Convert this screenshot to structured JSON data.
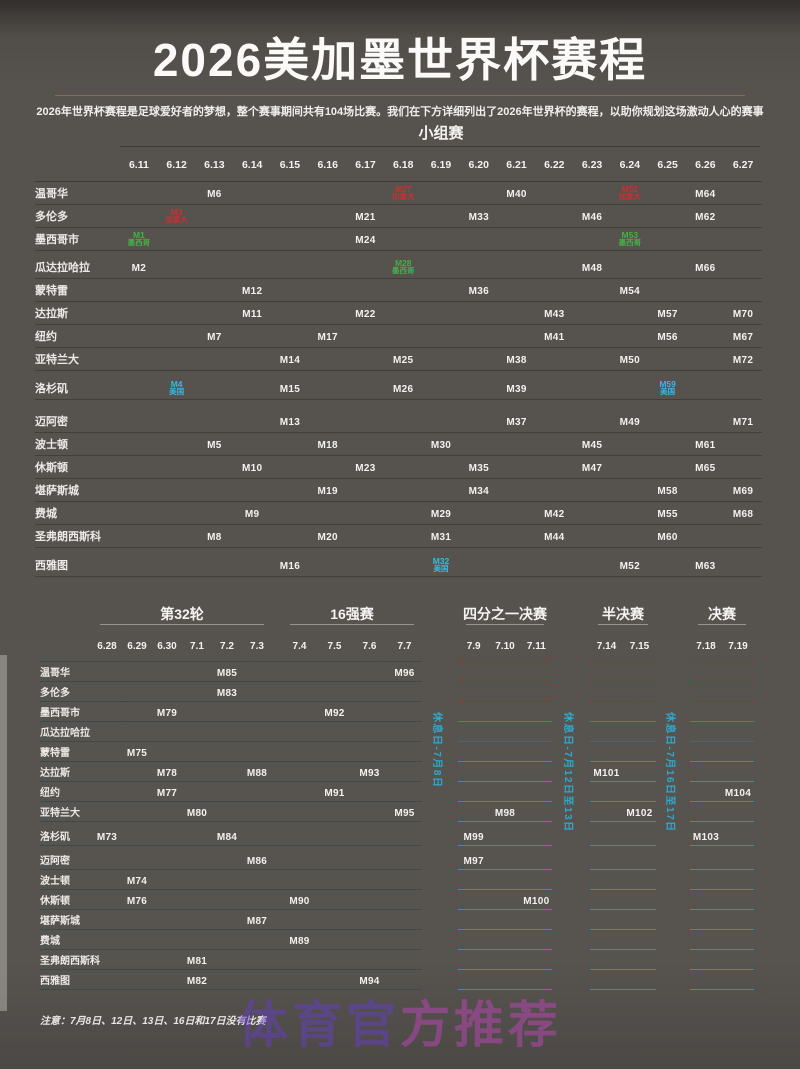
{
  "title": "2026美加墨世界杯赛程",
  "subtitle": "2026年世界杯赛程是足球爱好者的梦想，整个赛事期间共有104场比赛。我们在下方详细列出了2026年世界杯的赛程，以助你规划这场激动人心的赛事",
  "note": "注意：7月8日、12日、13日、16日和17日没有比赛",
  "watermark": {
    "left": "体育官",
    "right": "方推荐"
  },
  "countries": {
    "canada": "加拿大",
    "mexico": "墨西哥",
    "usa": "美国"
  },
  "colors": {
    "canada": "#c93030",
    "mexico": "#45b045",
    "usa": "#38b8ea",
    "rest_day": "#2fa9cf",
    "background": "#56524e",
    "title_rule": "#87695a"
  },
  "group_stage": {
    "heading": "小组赛",
    "dates": [
      "6.11",
      "6.12",
      "6.13",
      "6.14",
      "6.15",
      "6.16",
      "6.17",
      "6.18",
      "6.19",
      "6.20",
      "6.21",
      "6.22",
      "6.23",
      "6.24",
      "6.25",
      "6.26",
      "6.27"
    ],
    "rows": [
      {
        "city": "温哥华",
        "matches": [
          {
            "date": "6.13",
            "m": "M6"
          },
          {
            "date": "6.18",
            "m": "M27",
            "tag": "canada"
          },
          {
            "date": "6.21",
            "m": "M40"
          },
          {
            "date": "6.24",
            "m": "M51",
            "tag": "canada"
          },
          {
            "date": "6.26",
            "m": "M64"
          }
        ]
      },
      {
        "city": "多伦多",
        "matches": [
          {
            "date": "6.12",
            "m": "M3",
            "tag": "canada"
          },
          {
            "date": "6.17",
            "m": "M21"
          },
          {
            "date": "6.20",
            "m": "M33"
          },
          {
            "date": "6.23",
            "m": "M46"
          },
          {
            "date": "6.26",
            "m": "M62"
          }
        ]
      },
      {
        "city": "墨西哥市",
        "matches": [
          {
            "date": "6.11",
            "m": "M1",
            "tag": "mexico"
          },
          {
            "date": "6.17",
            "m": "M24"
          },
          {
            "date": "6.24",
            "m": "M53",
            "tag": "mexico"
          }
        ]
      },
      {
        "city": "瓜达拉哈拉",
        "matches": [
          {
            "date": "6.11",
            "m": "M2"
          },
          {
            "date": "6.18",
            "m": "M28",
            "tag": "mexico"
          },
          {
            "date": "6.23",
            "m": "M48"
          },
          {
            "date": "6.26",
            "m": "M66"
          }
        ]
      },
      {
        "city": "蒙特雷",
        "matches": [
          {
            "date": "6.14",
            "m": "M12"
          },
          {
            "date": "6.20",
            "m": "M36"
          },
          {
            "date": "6.24",
            "m": "M54"
          }
        ]
      },
      {
        "city": "达拉斯",
        "matches": [
          {
            "date": "6.14",
            "m": "M11"
          },
          {
            "date": "6.17",
            "m": "M22"
          },
          {
            "date": "6.22",
            "m": "M43"
          },
          {
            "date": "6.25",
            "m": "M57"
          },
          {
            "date": "6.27",
            "m": "M70"
          }
        ]
      },
      {
        "city": "纽约",
        "matches": [
          {
            "date": "6.13",
            "m": "M7"
          },
          {
            "date": "6.16",
            "m": "M17"
          },
          {
            "date": "6.22",
            "m": "M41"
          },
          {
            "date": "6.25",
            "m": "M56"
          },
          {
            "date": "6.27",
            "m": "M67"
          }
        ]
      },
      {
        "city": "亚特兰大",
        "matches": [
          {
            "date": "6.15",
            "m": "M14"
          },
          {
            "date": "6.18",
            "m": "M25"
          },
          {
            "date": "6.21",
            "m": "M38"
          },
          {
            "date": "6.24",
            "m": "M50"
          },
          {
            "date": "6.27",
            "m": "M72"
          }
        ]
      },
      {
        "city": "洛杉矶",
        "matches": [
          {
            "date": "6.12",
            "m": "M4",
            "tag": "usa"
          },
          {
            "date": "6.15",
            "m": "M15"
          },
          {
            "date": "6.18",
            "m": "M26"
          },
          {
            "date": "6.21",
            "m": "M39"
          },
          {
            "date": "6.25",
            "m": "M59",
            "tag": "usa"
          }
        ]
      },
      {
        "city": "迈阿密",
        "matches": [
          {
            "date": "6.15",
            "m": "M13"
          },
          {
            "date": "6.21",
            "m": "M37"
          },
          {
            "date": "6.24",
            "m": "M49"
          },
          {
            "date": "6.27",
            "m": "M71"
          }
        ]
      },
      {
        "city": "波士顿",
        "matches": [
          {
            "date": "6.13",
            "m": "M5"
          },
          {
            "date": "6.16",
            "m": "M18"
          },
          {
            "date": "6.19",
            "m": "M30"
          },
          {
            "date": "6.23",
            "m": "M45"
          },
          {
            "date": "6.26",
            "m": "M61"
          }
        ]
      },
      {
        "city": "休斯顿",
        "matches": [
          {
            "date": "6.14",
            "m": "M10"
          },
          {
            "date": "6.17",
            "m": "M23"
          },
          {
            "date": "6.20",
            "m": "M35"
          },
          {
            "date": "6.23",
            "m": "M47"
          },
          {
            "date": "6.26",
            "m": "M65"
          }
        ]
      },
      {
        "city": "堪萨斯城",
        "matches": [
          {
            "date": "6.16",
            "m": "M19"
          },
          {
            "date": "6.20",
            "m": "M34"
          },
          {
            "date": "6.25",
            "m": "M58"
          },
          {
            "date": "6.27",
            "m": "M69"
          }
        ]
      },
      {
        "city": "费城",
        "matches": [
          {
            "date": "6.14",
            "m": "M9"
          },
          {
            "date": "6.19",
            "m": "M29"
          },
          {
            "date": "6.22",
            "m": "M42"
          },
          {
            "date": "6.25",
            "m": "M55"
          },
          {
            "date": "6.27",
            "m": "M68"
          }
        ]
      },
      {
        "city": "圣弗朗西斯科",
        "matches": [
          {
            "date": "6.13",
            "m": "M8"
          },
          {
            "date": "6.16",
            "m": "M20"
          },
          {
            "date": "6.19",
            "m": "M31"
          },
          {
            "date": "6.22",
            "m": "M44"
          },
          {
            "date": "6.25",
            "m": "M60"
          }
        ]
      },
      {
        "city": "西雅图",
        "matches": [
          {
            "date": "6.15",
            "m": "M16"
          },
          {
            "date": "6.19",
            "m": "M32",
            "tag": "usa"
          },
          {
            "date": "6.24",
            "m": "M52"
          },
          {
            "date": "6.26",
            "m": "M63"
          }
        ]
      }
    ]
  },
  "knockout": {
    "sections": [
      {
        "name": "第32轮",
        "dates": [
          "6.28",
          "6.29",
          "6.30",
          "7.1",
          "7.2",
          "7.3"
        ]
      },
      {
        "name": "16强赛",
        "dates": [
          "7.4",
          "7.5",
          "7.6",
          "7.7"
        ]
      },
      {
        "name": "四分之一决赛",
        "dates": [
          "7.9",
          "7.10",
          "7.11"
        ]
      },
      {
        "name": "半决赛",
        "dates": [
          "7.14",
          "7.15"
        ]
      },
      {
        "name": "决赛",
        "dates": [
          "7.18",
          "7.19"
        ]
      }
    ],
    "rest_days": [
      "休息日-7月8日",
      "休息日-7月12日至13日",
      "休息日-7月16日至17日"
    ],
    "rows": [
      {
        "city": "温哥华",
        "matches": [
          {
            "date": "7.2",
            "m": "M85"
          },
          {
            "date": "7.7",
            "m": "M96"
          }
        ]
      },
      {
        "city": "多伦多",
        "matches": [
          {
            "date": "7.2",
            "m": "M83"
          }
        ]
      },
      {
        "city": "墨西哥市",
        "matches": [
          {
            "date": "6.30",
            "m": "M79"
          },
          {
            "date": "7.5",
            "m": "M92"
          }
        ]
      },
      {
        "city": "瓜达拉哈拉",
        "matches": []
      },
      {
        "city": "蒙特雷",
        "matches": [
          {
            "date": "6.29",
            "m": "M75"
          }
        ]
      },
      {
        "city": "达拉斯",
        "matches": [
          {
            "date": "6.30",
            "m": "M78"
          },
          {
            "date": "7.3",
            "m": "M88"
          },
          {
            "date": "7.6",
            "m": "M93"
          },
          {
            "date": "7.14",
            "m": "M101"
          }
        ]
      },
      {
        "city": "纽约",
        "matches": [
          {
            "date": "6.30",
            "m": "M77"
          },
          {
            "date": "7.5",
            "m": "M91"
          },
          {
            "date": "7.19",
            "m": "M104"
          }
        ]
      },
      {
        "city": "亚特兰大",
        "matches": [
          {
            "date": "7.1",
            "m": "M80"
          },
          {
            "date": "7.7",
            "m": "M95"
          },
          {
            "date": "7.10",
            "m": "M98"
          },
          {
            "date": "7.15",
            "m": "M102"
          }
        ]
      },
      {
        "city": "洛杉矶",
        "matches": [
          {
            "date": "6.28",
            "m": "M73"
          },
          {
            "date": "7.2",
            "m": "M84"
          },
          {
            "date": "7.9",
            "m": "M99"
          },
          {
            "date": "7.18",
            "m": "M103"
          }
        ]
      },
      {
        "city": "迈阿密",
        "matches": [
          {
            "date": "7.3",
            "m": "M86"
          },
          {
            "date": "7.9",
            "m": "M97"
          }
        ]
      },
      {
        "city": "波士顿",
        "matches": [
          {
            "date": "6.29",
            "m": "M74"
          }
        ]
      },
      {
        "city": "休斯顿",
        "matches": [
          {
            "date": "6.29",
            "m": "M76"
          },
          {
            "date": "7.4",
            "m": "M90"
          },
          {
            "date": "7.11",
            "m": "M100"
          }
        ]
      },
      {
        "city": "堪萨斯城",
        "matches": [
          {
            "date": "7.3",
            "m": "M87"
          }
        ]
      },
      {
        "city": "费城",
        "matches": [
          {
            "date": "7.4",
            "m": "M89"
          }
        ]
      },
      {
        "city": "圣弗朗西斯科",
        "matches": [
          {
            "date": "7.1",
            "m": "M81"
          }
        ]
      },
      {
        "city": "西雅图",
        "matches": [
          {
            "date": "7.1",
            "m": "M82"
          },
          {
            "date": "7.6",
            "m": "M94"
          }
        ]
      }
    ]
  }
}
